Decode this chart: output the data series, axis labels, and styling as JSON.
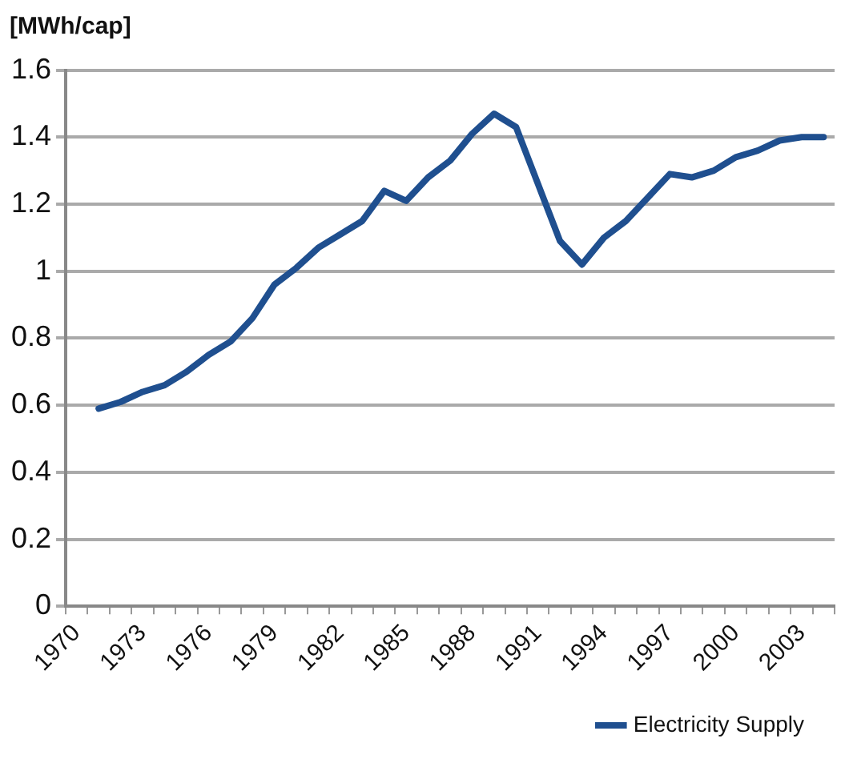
{
  "chart_data": {
    "type": "line",
    "ylabel": "[MWh/cap]",
    "categories": [
      "1970",
      null,
      null,
      "1973",
      null,
      null,
      "1976",
      null,
      null,
      "1979",
      null,
      null,
      "1982",
      null,
      null,
      "1985",
      null,
      null,
      "1988",
      null,
      null,
      "1991",
      null,
      null,
      "1994",
      null,
      null,
      "1997",
      null,
      null,
      "2000",
      null,
      null,
      "2003",
      null
    ],
    "series": [
      {
        "name": "Electricity Supply",
        "color": "#1f4f8f",
        "values": [
          null,
          0.59,
          0.61,
          0.64,
          0.66,
          0.7,
          0.75,
          0.79,
          0.86,
          0.96,
          1.01,
          1.07,
          1.11,
          1.15,
          1.24,
          1.21,
          1.28,
          1.33,
          1.41,
          1.47,
          1.43,
          1.26,
          1.09,
          1.02,
          1.1,
          1.15,
          1.22,
          1.29,
          1.28,
          1.3,
          1.34,
          1.36,
          1.39,
          1.4,
          1.4
        ]
      }
    ],
    "ylim": [
      0,
      1.6
    ],
    "yticks": [
      0,
      0.2,
      0.4,
      0.6,
      0.8,
      1,
      1.2,
      1.4,
      1.6
    ],
    "grid": "y",
    "legend": "bottom right",
    "marker": "none",
    "line_style": "solid"
  }
}
